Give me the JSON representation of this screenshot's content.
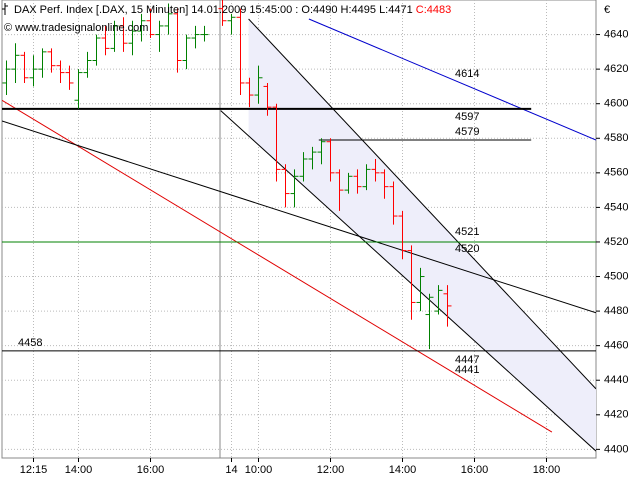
{
  "chart_data": {
    "type": "ohlc",
    "title": "DAX Perf. Index [.DAX, 15 Minuten] 14.01.2009 15:45:00 : O:4490 H:4495 L:4471",
    "title_close": "C:4483",
    "title_close_color": "#ff0000",
    "copyright": "© www.tradesignalonline.com",
    "currency": "€",
    "up_color": "#008000",
    "down_color": "#ff0000",
    "grid": true,
    "x": [
      0,
      1,
      2,
      3,
      4,
      5,
      6,
      7,
      8,
      9,
      10,
      11,
      12,
      13,
      14,
      15,
      16,
      17,
      18,
      19,
      20,
      21,
      22,
      24,
      25,
      26,
      27,
      28,
      29,
      30,
      31,
      32,
      33,
      34,
      35,
      36,
      37,
      38,
      39,
      40,
      41,
      42,
      43,
      44,
      45,
      46,
      47,
      48,
      49
    ],
    "open": [
      4612,
      4620,
      4628,
      4615,
      4620,
      4630,
      4622,
      4618,
      4602,
      4618,
      4625,
      4638,
      4632,
      4645,
      4635,
      4642,
      4648,
      4640,
      4645,
      4652,
      4625,
      4638,
      4640,
      4655,
      4648,
      4650,
      4612,
      4605,
      4610,
      4598,
      4562,
      4548,
      4558,
      4568,
      4572,
      4578,
      4560,
      4550,
      4558,
      4552,
      4562,
      4560,
      4552,
      4535,
      4515,
      4485,
      4478,
      4480,
      4490
    ],
    "high": [
      4625,
      4635,
      4630,
      4628,
      4632,
      4632,
      4625,
      4622,
      4620,
      4630,
      4640,
      4645,
      4648,
      4650,
      4648,
      4652,
      4655,
      4648,
      4658,
      4655,
      4640,
      4645,
      4645,
      4665,
      4652,
      4655,
      4615,
      4622,
      4612,
      4600,
      4565,
      4562,
      4572,
      4575,
      4580,
      4580,
      4562,
      4560,
      4562,
      4565,
      4568,
      4562,
      4555,
      4538,
      4518,
      4505,
      4490,
      4495,
      4495
    ],
    "low": [
      4605,
      4612,
      4612,
      4610,
      4615,
      4618,
      4612,
      4608,
      4597,
      4615,
      4622,
      4628,
      4630,
      4630,
      4628,
      4636,
      4638,
      4630,
      4640,
      4618,
      4620,
      4632,
      4636,
      4645,
      4640,
      4605,
      4598,
      4600,
      4593,
      4555,
      4540,
      4540,
      4555,
      4562,
      4565,
      4555,
      4538,
      4548,
      4548,
      4550,
      4555,
      4545,
      4530,
      4510,
      4475,
      4480,
      4458,
      4478,
      4471
    ],
    "close": [
      4620,
      4628,
      4615,
      4620,
      4630,
      4622,
      4618,
      4612,
      4618,
      4625,
      4638,
      4632,
      4645,
      4635,
      4642,
      4648,
      4640,
      4645,
      4652,
      4625,
      4638,
      4640,
      4640,
      4648,
      4650,
      4612,
      4605,
      4615,
      4598,
      4562,
      4548,
      4558,
      4568,
      4572,
      4578,
      4560,
      4550,
      4558,
      4552,
      4562,
      4560,
      4552,
      4535,
      4515,
      4485,
      4500,
      4488,
      4492,
      4483
    ],
    "xlim": [
      -0.5,
      65.5
    ],
    "xticks": [
      {
        "value": 3,
        "label": "12:15"
      },
      {
        "value": 8,
        "label": "14:00"
      },
      {
        "value": 16,
        "label": "16:00"
      },
      {
        "value": 25,
        "label": "14"
      },
      {
        "value": 28,
        "label": "10:00"
      },
      {
        "value": 36,
        "label": "12:00"
      },
      {
        "value": 44,
        "label": "14:00"
      },
      {
        "value": 52,
        "label": "16:00"
      },
      {
        "value": 60,
        "label": "18:00"
      }
    ],
    "ylim": [
      4395,
      4660
    ],
    "yticks": [
      4400,
      4420,
      4440,
      4460,
      4480,
      4500,
      4520,
      4540,
      4560,
      4580,
      4600,
      4620,
      4640
    ],
    "lines": [
      {
        "x": [
          -0.5,
          60.6
        ],
        "y": [
          4602,
          4410
        ],
        "color": "#e00000",
        "width": 1
      },
      {
        "x": [
          -0.5,
          65.5
        ],
        "y": [
          4590,
          4479
        ],
        "color": "#000000",
        "width": 1
      },
      {
        "x": [
          33.6,
          65.5
        ],
        "y": [
          4649,
          4579
        ],
        "color": "#0000cc",
        "width": 1
      },
      {
        "x": [
          26.9,
          65.5
        ],
        "y": [
          4649,
          4435
        ],
        "color": "#000000",
        "width": 1
      },
      {
        "x": [
          23.8,
          65.5
        ],
        "y": [
          4596,
          4399
        ],
        "color": "#000000",
        "width": 1
      },
      {
        "x": [
          -0.5,
          58.3
        ],
        "y": [
          4597,
          4597
        ],
        "color": "#000000",
        "width": 2
      },
      {
        "x": [
          34.7,
          58.3
        ],
        "y": [
          4579,
          4579
        ],
        "color": "#000000",
        "width": 1
      },
      {
        "x": [
          -0.5,
          65.5
        ],
        "y": [
          4520,
          4520
        ],
        "color": "#008000",
        "width": 1
      },
      {
        "x": [
          -0.5,
          65.5
        ],
        "y": [
          4457,
          4457
        ],
        "color": "#000000",
        "width": 1
      }
    ],
    "annotations": [
      {
        "text": "4614",
        "color": "#0000cc"
      },
      {
        "text": "4597",
        "color": "#000000"
      },
      {
        "text": "4579",
        "color": "#000000"
      },
      {
        "text": "4521",
        "color": "#000000"
      },
      {
        "text": "4520",
        "color": "#008000"
      },
      {
        "text": "4458",
        "color": "#000000"
      },
      {
        "text": "4447",
        "color": "#000000"
      },
      {
        "text": "4441",
        "color": "#e00000"
      }
    ]
  }
}
